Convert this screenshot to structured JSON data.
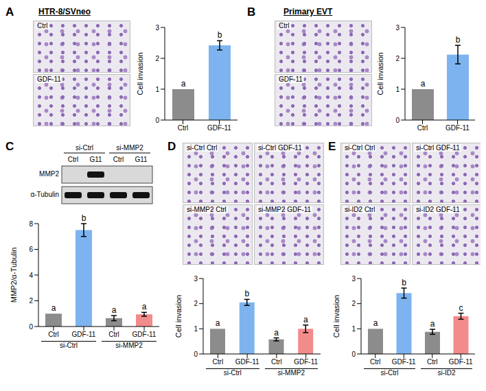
{
  "chart_data": [
    {
      "panel": "A",
      "type": "bar",
      "title": "HTR-8/SVneo",
      "images": [
        "Ctrl",
        "GDF-11"
      ],
      "y_label": "Cell invasion",
      "categories": [
        "Ctrl",
        "GDF-11"
      ],
      "values": [
        1,
        2.42
      ],
      "errors": [
        0,
        0.15
      ],
      "letters": [
        "a",
        "b"
      ],
      "colors": [
        "#8c8c8c",
        "#7db4ef"
      ],
      "ylim": [
        0,
        3
      ],
      "yticks": [
        0,
        1,
        2,
        3
      ]
    },
    {
      "panel": "B",
      "type": "bar",
      "title": "Primary EVT",
      "images": [
        "Ctrl",
        "GDF-11"
      ],
      "y_label": "Cell invasion",
      "categories": [
        "Ctrl",
        "GDF-11"
      ],
      "values": [
        1,
        2.12
      ],
      "errors": [
        0,
        0.3
      ],
      "letters": [
        "a",
        "b"
      ],
      "colors": [
        "#8c8c8c",
        "#7db4ef"
      ],
      "ylim": [
        0,
        3
      ],
      "yticks": [
        0,
        1,
        2,
        3
      ]
    },
    {
      "panel": "C",
      "type": "bar",
      "blot": {
        "groups": [
          "si-Ctrl",
          "si-MMP2"
        ],
        "lanes": [
          "Ctrl",
          "G11",
          "Ctrl",
          "G11"
        ],
        "rows": [
          "MMP2",
          "α-Tubulin"
        ],
        "bands": [
          [
            0,
            1,
            0,
            0
          ],
          [
            1,
            1,
            1,
            1
          ]
        ]
      },
      "y_label": "MMP2/α-Tubulin",
      "groups": [
        "si-Ctrl",
        "si-MMP2"
      ],
      "categories": [
        "Ctrl",
        "GDF-11",
        "Ctrl",
        "GDF-11"
      ],
      "values": [
        1,
        7.5,
        0.65,
        0.95
      ],
      "errors": [
        0,
        0.5,
        0.2,
        0.15
      ],
      "letters": [
        "a",
        "b",
        "a",
        "a"
      ],
      "colors": [
        "#8c8c8c",
        "#7db4ef",
        "#8c8c8c",
        "#f28b8b"
      ],
      "ylim": [
        0,
        8
      ],
      "yticks": [
        0,
        2,
        4,
        6,
        8
      ]
    },
    {
      "panel": "D",
      "type": "bar",
      "images": [
        "si-Ctrl Ctrl",
        "si-Ctrl GDF-11",
        "si-MMP2 Ctrl",
        "si-MMP2 GDF-11"
      ],
      "y_label": "Cell invasion",
      "groups": [
        "si-Ctrl",
        "si-MMP2"
      ],
      "categories": [
        "Ctrl",
        "GDF-11",
        "Ctrl",
        "GDF-11"
      ],
      "values": [
        1,
        2.05,
        0.58,
        1.0
      ],
      "errors": [
        0,
        0.12,
        0.06,
        0.15
      ],
      "letters": [
        "a",
        "b",
        "a",
        "a"
      ],
      "colors": [
        "#8c8c8c",
        "#7db4ef",
        "#8c8c8c",
        "#f28b8b"
      ],
      "ylim": [
        0,
        3
      ],
      "yticks": [
        0,
        1,
        2,
        3
      ]
    },
    {
      "panel": "E",
      "type": "bar",
      "images": [
        "si-Ctrl Ctrl",
        "si-Ctrl GDF-11",
        "si-ID2 Ctrl",
        "si-ID2 GDF-11"
      ],
      "y_label": "Cell invasion",
      "groups": [
        "si-Ctrl",
        "si-ID2"
      ],
      "categories": [
        "Ctrl",
        "GDF-11",
        "Ctrl",
        "GDF-11"
      ],
      "values": [
        1,
        2.42,
        0.88,
        1.5
      ],
      "errors": [
        0,
        0.2,
        0.1,
        0.12
      ],
      "letters": [
        "a",
        "b",
        "a",
        "c"
      ],
      "colors": [
        "#8c8c8c",
        "#7db4ef",
        "#8c8c8c",
        "#f28b8b"
      ],
      "ylim": [
        0,
        3
      ],
      "yticks": [
        0,
        1,
        2,
        3
      ]
    }
  ]
}
